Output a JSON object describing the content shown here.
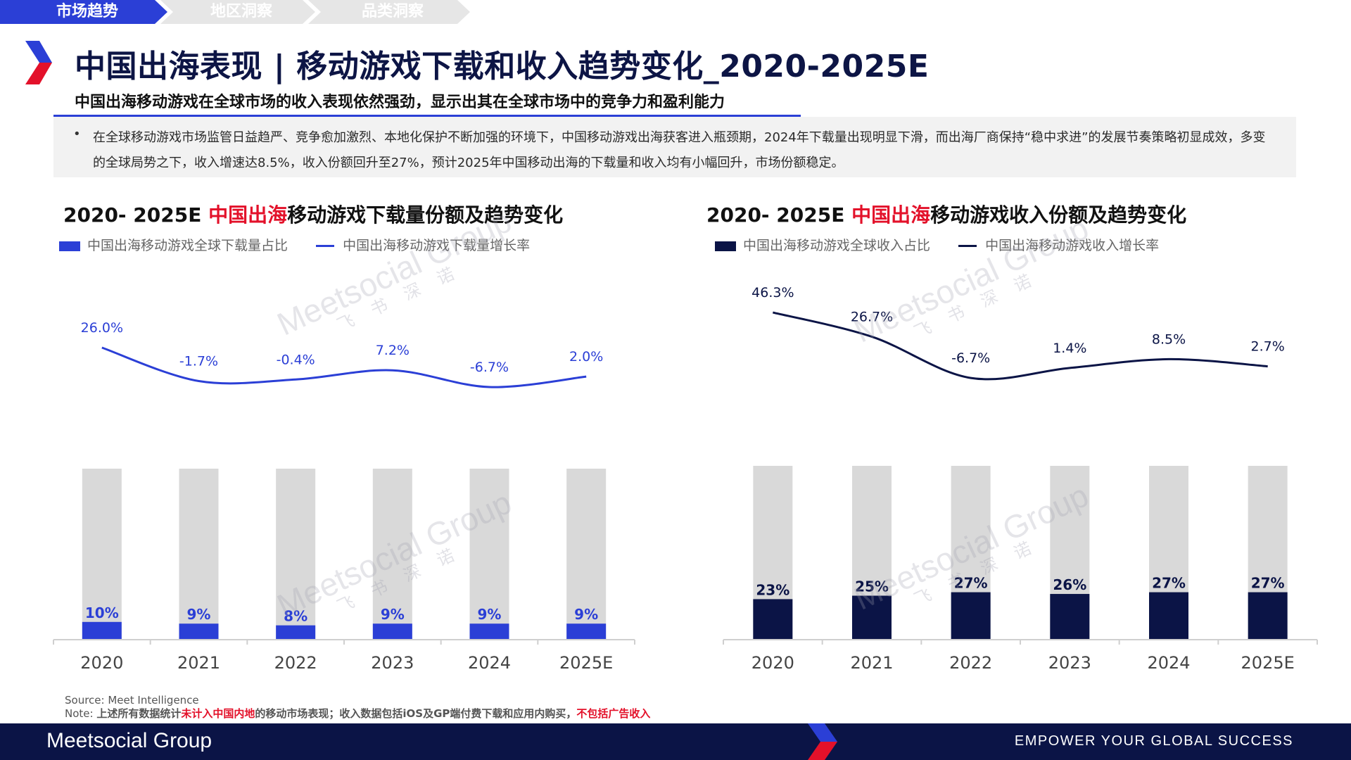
{
  "tabs": [
    "市场趋势",
    "地区洞察",
    "品类洞察"
  ],
  "title": "中国出海表现 | 移动游戏下载和收入趋势变化_2020-2025E",
  "subtitle": "中国出海移动游戏在全球市场的收入表现依然强劲，显示出其在全球市场中的竞争力和盈利能力",
  "note": {
    "bullet": "•",
    "text": "在全球移动游戏市场监管日益趋严、竞争愈加激烈、本地化保护不断加强的环境下，中国移动游戏出海获客进入瓶颈期，2024年下载量出现明显下滑，而出海厂商保持“稳中求进”的发展节奏策略初显成效，多变的全球局势之下，收入增速达8.5%，收入份额回升至27%，预计2025年中国移动出海的下载量和收入均有小幅回升，市场份额稳定。"
  },
  "watermark": {
    "brand": "Meetsocial Group",
    "cn": "飞书深诺"
  },
  "colors": {
    "accent": "#2b3fd6",
    "navy": "#0b1446",
    "red": "#e3112a",
    "bar_bg": "#d9d9d9",
    "download_bar": "#2b3fd6",
    "revenue_bar": "#0b1446"
  },
  "chart_data": [
    {
      "type": "bar+line",
      "title_prefix": "2020- 2025E ",
      "title_highlight": "中国出海",
      "title_suffix": "移动游戏下载量份额及趋势变化",
      "categories": [
        "2020",
        "2021",
        "2022",
        "2023",
        "2024",
        "2025E"
      ],
      "series": [
        {
          "name": "中国出海移动游戏全球下载量占比",
          "kind": "bar",
          "values": [
            10,
            9,
            8,
            9,
            9,
            9
          ],
          "labels": [
            "10%",
            "9%",
            "8%",
            "9%",
            "9%",
            "9%"
          ]
        },
        {
          "name": "中国出海移动游戏下载量增长率",
          "kind": "line",
          "values": [
            26.0,
            -1.7,
            -0.4,
            7.2,
            -6.7,
            2.0
          ],
          "labels": [
            "26.0%",
            "-1.7%",
            "-0.4%",
            "7.2%",
            "-6.7%",
            "2.0%"
          ]
        }
      ],
      "bar_ylim": [
        0,
        100
      ],
      "line_ylim": [
        -30,
        40
      ]
    },
    {
      "type": "bar+line",
      "title_prefix": "2020- 2025E ",
      "title_highlight": "中国出海",
      "title_suffix": "移动游戏收入份额及趋势变化",
      "categories": [
        "2020",
        "2021",
        "2022",
        "2023",
        "2024",
        "2025E"
      ],
      "series": [
        {
          "name": "中国出海移动游戏全球收入占比",
          "kind": "bar",
          "values": [
            23,
            25,
            27,
            26,
            27,
            27
          ],
          "labels": [
            "23%",
            "25%",
            "27%",
            "26%",
            "27%",
            "27%"
          ]
        },
        {
          "name": "中国出海移动游戏收入增长率",
          "kind": "line",
          "values": [
            46.3,
            26.7,
            -6.7,
            1.4,
            8.5,
            2.7
          ],
          "labels": [
            "46.3%",
            "26.7%",
            "-6.7%",
            "1.4%",
            "8.5%",
            "2.7%"
          ]
        }
      ],
      "bar_ylim": [
        0,
        100
      ],
      "line_ylim": [
        -30,
        60
      ]
    }
  ],
  "source": {
    "line1": "Source: Meet Intelligence",
    "note_prefix": "Note: ",
    "note_a": "上述所有数据统计",
    "note_red1": "未计入中国内地",
    "note_b": "的移动市场表现；收入数据包括iOS及GP端付费下载和应用内购买，",
    "note_red2": "不包括广告收入"
  },
  "footer": {
    "brand": "Meetsocial Group",
    "slogan": "EMPOWER YOUR GLOBAL SUCCESS"
  }
}
